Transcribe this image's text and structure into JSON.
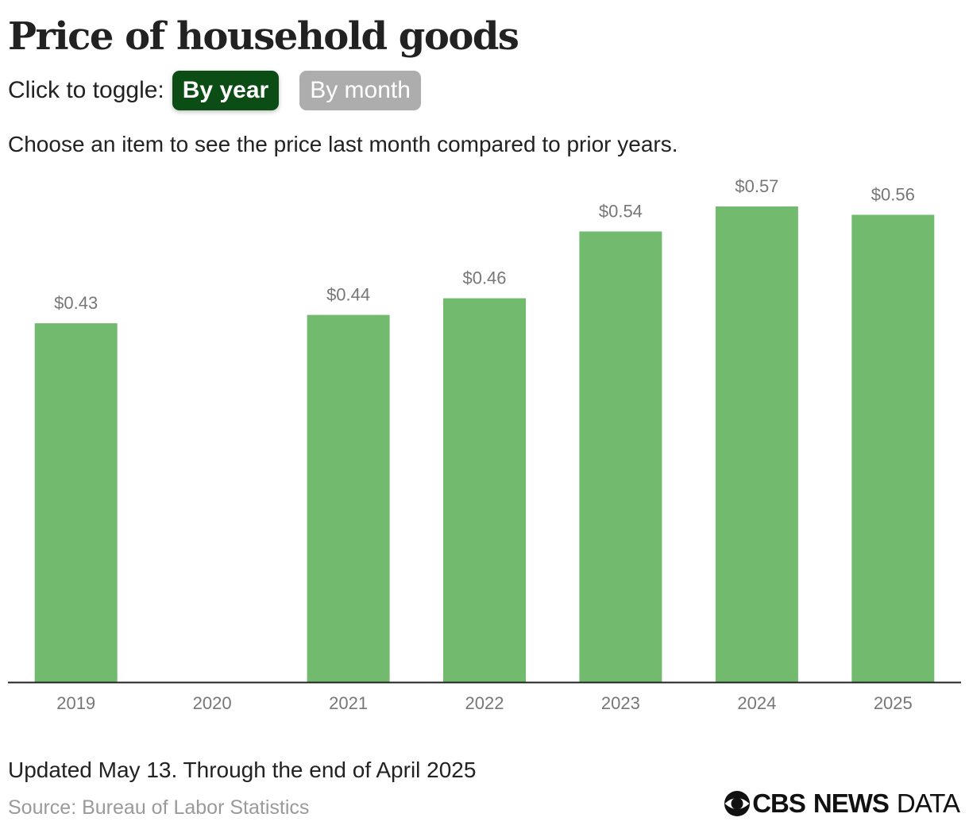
{
  "header": {
    "title": "Price of household goods",
    "toggle_label": "Click to toggle:",
    "toggle_options": [
      {
        "label": "By year",
        "active": true
      },
      {
        "label": "By month",
        "active": false
      }
    ],
    "instruction": "Choose an item to see the price last month compared to prior years."
  },
  "colors": {
    "bar": "#72bb6e",
    "toggle_active": "#0b4d14",
    "toggle_inactive": "#adadad",
    "axis": "#222222",
    "value_label": "#777777",
    "tick_label": "#777777"
  },
  "chart_data": {
    "type": "bar",
    "title": "",
    "xlabel": "",
    "ylabel": "",
    "categories": [
      "2019",
      "2020",
      "2021",
      "2022",
      "2023",
      "2024",
      "2025"
    ],
    "values": [
      0.43,
      null,
      0.44,
      0.46,
      0.54,
      0.57,
      0.56
    ],
    "value_labels": [
      "$0.43",
      "",
      "$0.44",
      "$0.46",
      "$0.54",
      "$0.57",
      "$0.56"
    ],
    "ylim": [
      0,
      0.57
    ],
    "grid": false,
    "legend": "none"
  },
  "footer": {
    "updated": "Updated May 13. Through the end of April 2025",
    "source": "Source: Bureau of Labor Statistics",
    "brand": {
      "icon": "cbs-eye-icon",
      "cbs": "CBS",
      "news": "NEWS",
      "data": "DATA"
    }
  }
}
